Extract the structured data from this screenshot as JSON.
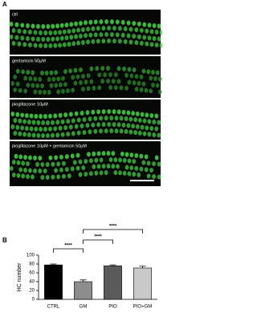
{
  "panels": {
    "a": {
      "label": "A",
      "images": [
        {
          "label": "ctrl"
        },
        {
          "label": "gentamicin 50μM"
        },
        {
          "label": "pioglitazone 10μM"
        },
        {
          "label": "pioglitazone 10μM + gentamicin 50μM"
        }
      ]
    },
    "b": {
      "label": "B"
    }
  },
  "chart_data": {
    "type": "bar",
    "ylabel": "HC number",
    "categories": [
      "CTRL",
      "GM",
      "PIO",
      "PIO+GM"
    ],
    "values": [
      78,
      40,
      76,
      71
    ],
    "errors": [
      2,
      4,
      2,
      4
    ],
    "colors": [
      "#000000",
      "#8c8c8c",
      "#5a5a5a",
      "#c8c8c8"
    ],
    "ylim": [
      0,
      100
    ],
    "yticks": [
      0,
      20,
      40,
      60,
      80,
      100
    ],
    "comparisons": [
      {
        "label": "****",
        "between": [
          0,
          1
        ]
      },
      {
        "label": "****",
        "between": [
          1,
          2
        ]
      },
      {
        "label": "****",
        "between": [
          1,
          3
        ]
      }
    ]
  }
}
